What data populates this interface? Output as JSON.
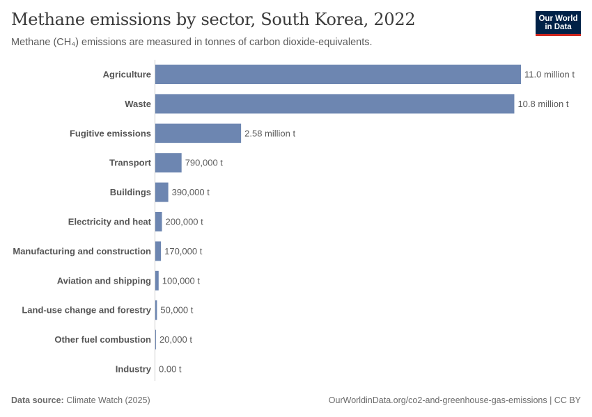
{
  "title": "Methane emissions by sector, South Korea, 2022",
  "subtitle": "Methane (CH₄) emissions are measured in tonnes of carbon dioxide-equivalents.",
  "logo": {
    "line1": "Our World",
    "line2": "in Data"
  },
  "footer": {
    "source_label": "Data source:",
    "source_value": "Climate Watch (2025)",
    "url": "OurWorldinData.org/co2-and-greenhouse-gas-emissions | CC BY"
  },
  "colors": {
    "bar": "#6d86b1",
    "axis": "#cccccc",
    "logo_bg": "#002147",
    "logo_accent": "#ce261e"
  },
  "chart_data": {
    "type": "bar",
    "orientation": "horizontal",
    "categories": [
      "Agriculture",
      "Waste",
      "Fugitive emissions",
      "Transport",
      "Buildings",
      "Electricity and heat",
      "Manufacturing and construction",
      "Aviation and shipping",
      "Land-use change and forestry",
      "Other fuel combustion",
      "Industry"
    ],
    "values": [
      11000000,
      10800000,
      2580000,
      790000,
      390000,
      200000,
      170000,
      100000,
      50000,
      20000,
      0
    ],
    "value_labels": [
      "11.0 million t",
      "10.8 million t",
      "2.58 million t",
      "790,000 t",
      "390,000 t",
      "200,000 t",
      "170,000 t",
      "100,000 t",
      "50,000 t",
      "20,000 t",
      "0.00 t"
    ],
    "xlim": [
      0,
      11000000
    ],
    "grid": false
  }
}
